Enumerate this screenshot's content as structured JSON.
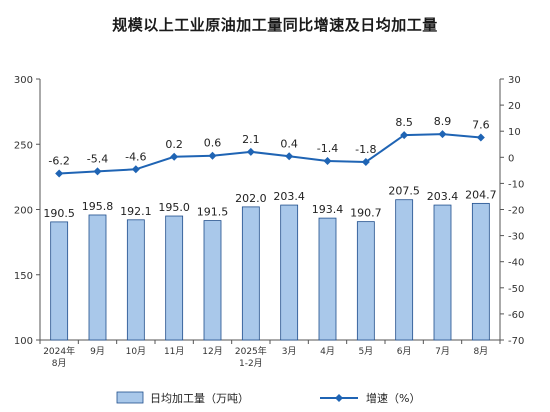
{
  "chart_data": {
    "type": "bar",
    "title": "规模以上工业原油加工量同比增速及日均加工量",
    "categories": [
      [
        "2024年",
        "8月"
      ],
      [
        "9月"
      ],
      [
        "10月"
      ],
      [
        "11月"
      ],
      [
        "12月"
      ],
      [
        "2025年",
        "1-2月"
      ],
      [
        "3月"
      ],
      [
        "4月"
      ],
      [
        "5月"
      ],
      [
        "6月"
      ],
      [
        "7月"
      ],
      [
        "8月"
      ]
    ],
    "series": [
      {
        "name": "日均加工量（万吨）",
        "type": "bar",
        "axis": "left",
        "values": [
          190.5,
          195.8,
          192.1,
          195.0,
          191.5,
          202.0,
          203.4,
          193.4,
          190.7,
          207.5,
          203.4,
          204.7
        ],
        "labels": [
          "190.5",
          "195.8",
          "192.1",
          "195.0",
          "191.5",
          "202.0",
          "203.4",
          "193.4",
          "190.7",
          "207.5",
          "203.4",
          "204.7"
        ]
      },
      {
        "name": "增速（%）",
        "type": "line",
        "axis": "right",
        "values": [
          -6.2,
          -5.4,
          -4.6,
          0.2,
          0.6,
          2.1,
          0.4,
          -1.4,
          -1.8,
          8.5,
          8.9,
          7.6
        ],
        "labels": [
          "-6.2",
          "-5.4",
          "-4.6",
          "0.2",
          "0.6",
          "2.1",
          "0.4",
          "-1.4",
          "-1.8",
          "8.5",
          "8.9",
          "7.6"
        ]
      }
    ],
    "y_left": {
      "min": 100,
      "max": 300,
      "ticks": [
        "100",
        "150",
        "200",
        "250",
        "300"
      ]
    },
    "y_right": {
      "min": -70,
      "max": 30,
      "ticks": [
        "30",
        "20",
        "10",
        "0",
        "-10",
        "-20",
        "-30",
        "-40",
        "-50",
        "-60",
        "-70"
      ]
    },
    "grid": false,
    "legend_position": "bottom",
    "colors": {
      "bar_fill": "#a9c8ea",
      "bar_stroke": "#1f4e8c",
      "line": "#1f64b4",
      "axis": "#555555"
    }
  }
}
